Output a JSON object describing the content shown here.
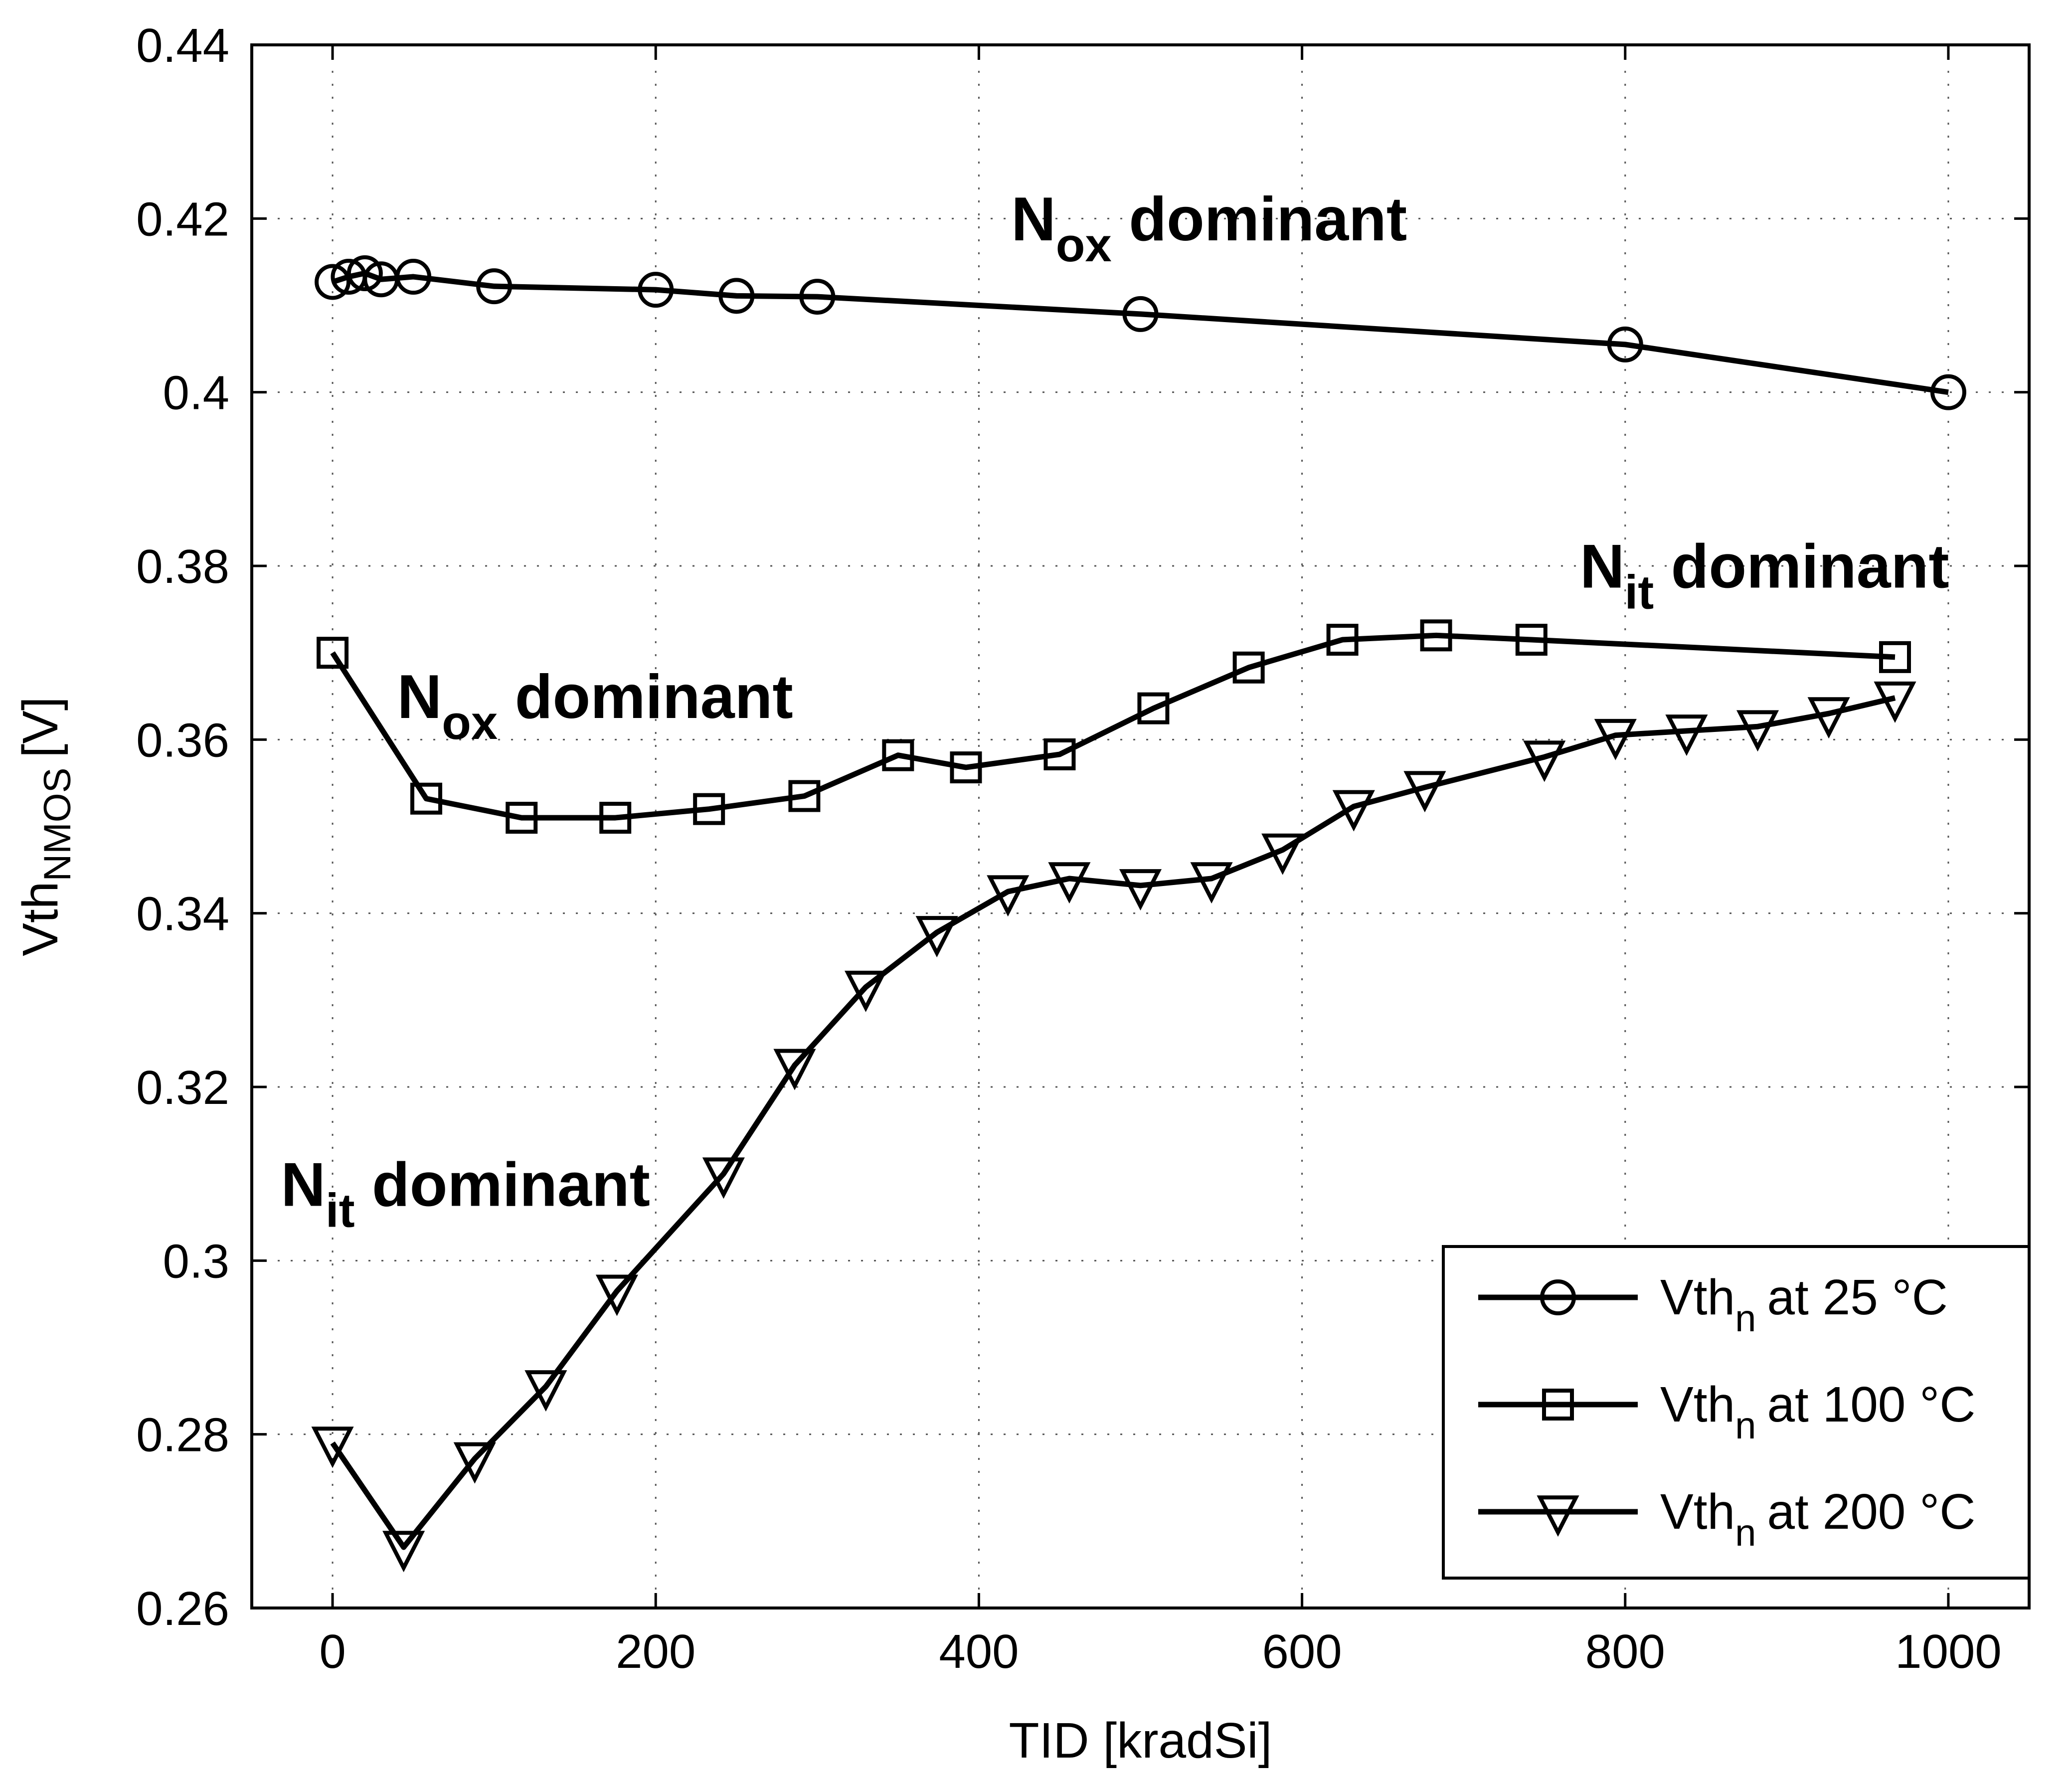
{
  "chart_data": {
    "type": "line",
    "title": "",
    "xlabel": "TID [kradSi]",
    "ylabel": "Vth",
    "ylabel_sub": "NMOS",
    "ylabel_unit": "[V]",
    "xlim": [
      -50,
      1050
    ],
    "ylim": [
      0.26,
      0.44
    ],
    "xticks": [
      0,
      200,
      400,
      600,
      800,
      1000
    ],
    "yticks": [
      0.26,
      0.28,
      0.3,
      0.32,
      0.34,
      0.36,
      0.38,
      0.4,
      0.42,
      0.44
    ],
    "xtick_labels": [
      "0",
      "200",
      "400",
      "600",
      "800",
      "1000"
    ],
    "ytick_labels": [
      "0.26",
      "0.28",
      "0.3",
      "0.32",
      "0.34",
      "0.36",
      "0.38",
      "0.4",
      "0.42",
      "0.44"
    ],
    "grid": true,
    "legend_position": "bottom-right",
    "series": [
      {
        "name": "Vth_n at 25 °C",
        "legend_main": "Vth",
        "legend_sub": "n",
        "legend_rest": "at 25 °C",
        "marker": "circle",
        "x": [
          0,
          10,
          20,
          30,
          50,
          100,
          200,
          250,
          300,
          500,
          800,
          1000
        ],
        "y": [
          0.4127,
          0.4133,
          0.4137,
          0.413,
          0.4133,
          0.4122,
          0.4118,
          0.4111,
          0.411,
          0.409,
          0.4055,
          0.4
        ]
      },
      {
        "name": "Vth_n at 100 °C",
        "legend_main": "Vth",
        "legend_sub": "n",
        "legend_rest": "at 100 °C",
        "marker": "square",
        "x": [
          0,
          58,
          117,
          175,
          233,
          292,
          350,
          392,
          450,
          508,
          567,
          625,
          683,
          742,
          967
        ],
        "y": [
          0.37,
          0.3532,
          0.351,
          0.351,
          0.352,
          0.3535,
          0.3582,
          0.3568,
          0.3583,
          0.3636,
          0.3683,
          0.3715,
          0.372,
          0.3715,
          0.3695
        ]
      },
      {
        "name": "Vth_n at 200 °C",
        "legend_main": "Vth",
        "legend_sub": "n",
        "legend_rest": "at 200 °C",
        "marker": "triangle-down",
        "x": [
          0,
          44,
          88,
          132,
          176,
          242,
          286,
          330,
          374,
          418,
          456,
          500,
          544,
          588,
          632,
          676,
          750,
          794,
          838,
          882,
          926,
          967
        ],
        "y": [
          0.279,
          0.267,
          0.2772,
          0.2855,
          0.2965,
          0.31,
          0.3225,
          0.3315,
          0.3378,
          0.3425,
          0.344,
          0.3432,
          0.344,
          0.3473,
          0.3523,
          0.3545,
          0.358,
          0.3605,
          0.361,
          0.3615,
          0.363,
          0.3648
        ]
      }
    ],
    "annotations": [
      {
        "main": "N",
        "sub": "ox",
        "rest": " dominant",
        "x": 420,
        "y": 0.4175
      },
      {
        "main": "N",
        "sub": "ox",
        "rest": " dominant",
        "x": 40,
        "y": 0.3625
      },
      {
        "main": "N",
        "sub": "it",
        "rest": " dominant",
        "x": -32,
        "y": 0.3063
      },
      {
        "main": "N",
        "sub": "it",
        "rest": " dominant",
        "x": 772,
        "y": 0.3775
      }
    ]
  }
}
